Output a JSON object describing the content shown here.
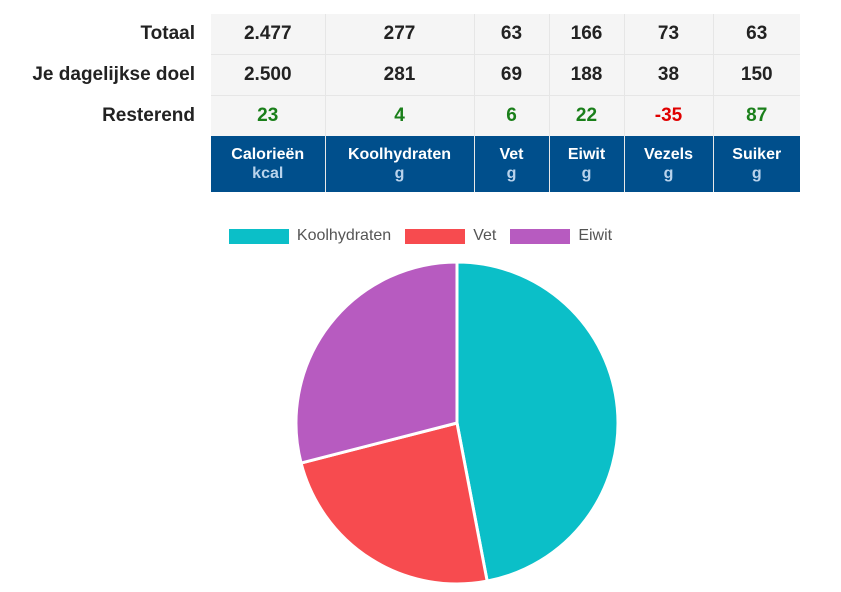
{
  "table": {
    "rows": [
      {
        "key": "total",
        "label": "Totaal",
        "values": [
          "2.477",
          "277",
          "63",
          "166",
          "73",
          "63"
        ]
      },
      {
        "key": "goal",
        "label": "Je dagelijkse doel",
        "values": [
          "2.500",
          "281",
          "69",
          "188",
          "38",
          "150"
        ]
      },
      {
        "key": "remaining",
        "label": "Resterend",
        "values": [
          "23",
          "4",
          "6",
          "22",
          "-35",
          "87"
        ]
      }
    ],
    "columns": [
      {
        "name": "Calorieën",
        "unit": "kcal"
      },
      {
        "name": "Koolhydraten",
        "unit": "g"
      },
      {
        "name": "Vet",
        "unit": "g"
      },
      {
        "name": "Eiwit",
        "unit": "g"
      },
      {
        "name": "Vezels",
        "unit": "g"
      },
      {
        "name": "Suiker",
        "unit": "g"
      }
    ],
    "colors": {
      "header_bg": "#004f8c",
      "positive": "#1a7f1a",
      "negative": "#e00000"
    }
  },
  "chart_data": {
    "type": "pie",
    "categories": [
      "Koolhydraten",
      "Vet",
      "Eiwit"
    ],
    "values": [
      47,
      24,
      29
    ],
    "colors": [
      "#0bbfc8",
      "#f74b4f",
      "#b75bc0"
    ],
    "legend": "top"
  }
}
